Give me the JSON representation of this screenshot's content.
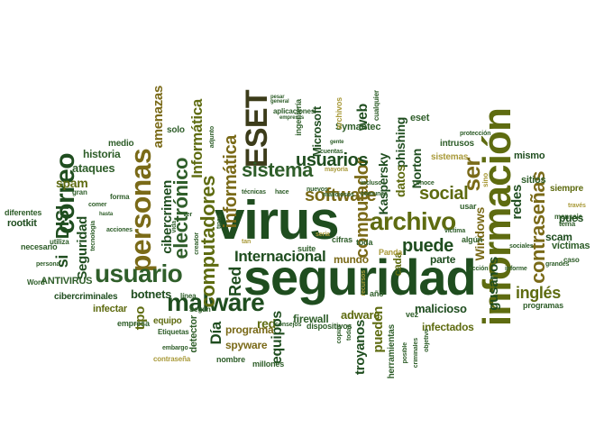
{
  "words": {
    "virus": "virus",
    "seguridad": "seguridad",
    "informacion": "información",
    "personas": "personas",
    "correo": "correo",
    "archivo": "archivo",
    "usuario": "usuario",
    "malware": "malware",
    "eset_upper": "ESET",
    "sistema": "sistema",
    "software": "software",
    "ser": "ser",
    "contrasenas": "contraseñas",
    "puede": "puede",
    "social": "social",
    "computador": "computador",
    "computadores": "computadores",
    "electronico": "electrónico",
    "informatica_lower": "informática",
    "informatica_cap": "Informática",
    "cibercrimen": "cibercrimen",
    "usuarios": "usuarios",
    "internacional": "Internacional",
    "ingles": "inglés",
    "dia": "Día",
    "red_cap": "Red",
    "red": "red",
    "disi": "DISI",
    "si": "si",
    "spam": "spam",
    "seguridad_cap": "Seguridad",
    "amenazas": "amenazas",
    "ataques": "ataques",
    "historia": "historia",
    "botnets": "botnets",
    "tipo": "tipo",
    "equipos": "equipos",
    "firewall": "firewall",
    "adware": "adware",
    "troyanos": "troyanos",
    "pueden": "pueden",
    "malicioso": "malicioso",
    "infectados": "infectados",
    "spyware": "spyware",
    "programa": "programa",
    "gusanos": "gusanos",
    "redes": "redes",
    "windows": "Windows",
    "kaspersky": "Kaspersky",
    "norton": "Norton",
    "phishing": "phishing",
    "datos": "datos",
    "web": "web",
    "microsoft": "Microsoft",
    "symantec": "Symantec",
    "eset_lower": "eset",
    "mundo": "mundo",
    "parte": "parte",
    "cada": "cada",
    "scam": "scam",
    "pues": "pues",
    "victimas": "víctimas",
    "mismo": "mismo",
    "sitios": "sitios",
    "siempre": "siempre",
    "rootkit": "rootkit",
    "antivirus": "ANTIVIRUS",
    "cibercriminales": "cibercriminales",
    "infectar": "infectar",
    "detector": "detector",
    "equipo": "equipo",
    "solo": "solo",
    "medio": "medio",
    "diferentes": "diferentes",
    "necesario": "necesario",
    "intrusos": "intrusos",
    "sistemas": "sistemas",
    "dispositivos": "dispositivos",
    "herramientas": "herramientas",
    "cifras": "cifras",
    "suite": "suite",
    "toda": "toda",
    "usar": "usar",
    "algun": "algún",
    "vez": "vez",
    "ano": "año",
    "panda": "Panda",
    "programas": "programas",
    "nombre": "nombre",
    "millones": "millones",
    "empresa": "empresa",
    "contrasena": "contraseña",
    "etiquetas": "Etiquetas",
    "segun": "Según",
    "linea": "línea",
    "ingenieria": "ingeniería",
    "archivos": "archivos",
    "aplicaciones": "aplicaciones",
    "cualquier": "cualquier",
    "proteccion": "protección",
    "mensaje": "mensaje",
    "tema": "tema",
    "caso": "caso",
    "forma": "forma",
    "gran": "gran",
    "conoce": "conoce",
    "cuentas": "cuentas",
    "utiliza": "utiliza",
    "word": "Word",
    "persona": "persona",
    "acciones": "acciones",
    "sociales": "sociales",
    "informe": "informe",
    "posible": "posible",
    "criminales": "criminales",
    "objetivo": "objetivo",
    "copias": "copias",
    "todas": "todas",
    "consejos": "consejos",
    "victima": "víctima",
    "embargo": "embargo",
    "mayoria": "mayoría",
    "maliciosos": "maliciosos",
    "incluso": "incluso",
    "nuevos": "nuevos",
    "tecnicas": "técnicas",
    "hace": "hace",
    "adjunto": "adjunto",
    "comunes": "comunes",
    "sino": "sino",
    "traves": "través",
    "grandes": "grandes",
    "accion": "acción",
    "recursos": "recursos",
    "tipos": "tipos",
    "creador": "creador",
    "tecnologia": "tecnología",
    "tan": "tan",
    "seria": "sería",
    "ver": "ver",
    "vida": "vida",
    "gente": "gente",
    "como": "comer",
    "pesar": "pesar",
    "general": "general",
    "empresas": "empresas",
    "hasta": "hasta"
  }
}
